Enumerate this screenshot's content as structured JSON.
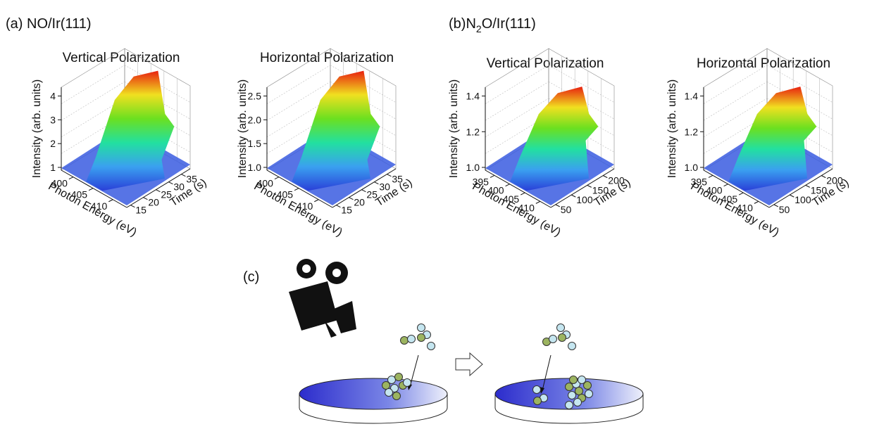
{
  "panels": [
    {
      "label": "(a) NO/Ir(111)",
      "plots": [
        {
          "title": "Vertical Polarization",
          "y_label": "Intensity (arb. units)",
          "x_label": "Photon Energy (eV)",
          "z_label": "Time (s)",
          "y_ticks": [
            "1",
            "2",
            "3",
            "4"
          ],
          "x_ticks": [
            "400",
            "405",
            "410"
          ],
          "z_ticks": [
            "15",
            "20",
            "25",
            "30",
            "35"
          ]
        },
        {
          "title": "Horizontal Polarization",
          "y_label": "Intensity (arb. units)",
          "x_label": "Photon Energy (eV)",
          "z_label": "Time (s)",
          "y_ticks": [
            "1.0",
            "1.5",
            "2.0",
            "2.5"
          ],
          "x_ticks": [
            "400",
            "405",
            "410"
          ],
          "z_ticks": [
            "15",
            "20",
            "25",
            "30",
            "35"
          ]
        }
      ]
    },
    {
      "label": [
        "(b)N",
        "2",
        "O/Ir(111)"
      ],
      "plots": [
        {
          "title": "Vertical Polarization",
          "y_label": "Intensity (arb. units)",
          "x_label": "Photon Energy (eV)",
          "z_label": "Time (s)",
          "y_ticks": [
            "1.0",
            "1.2",
            "1.4"
          ],
          "x_ticks": [
            "395",
            "400",
            "405",
            "410"
          ],
          "z_ticks": [
            "50",
            "100",
            "150",
            "200"
          ]
        },
        {
          "title": "Horizontal Polarization",
          "y_label": "Intensity (arb. units)",
          "x_label": "Photon Energy (eV)",
          "z_label": "Time (s)",
          "y_ticks": [
            "1.0",
            "1.2",
            "1.4"
          ],
          "x_ticks": [
            "395",
            "400",
            "405",
            "410"
          ],
          "z_ticks": [
            "50",
            "100",
            "150",
            "200"
          ]
        }
      ]
    }
  ],
  "panel_c": {
    "label": "(c)"
  }
}
